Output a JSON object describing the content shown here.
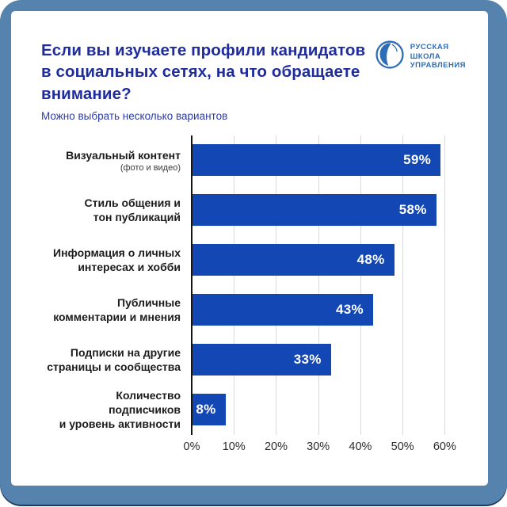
{
  "header": {
    "title": "Если вы изучаете профили кандидатов в социальных сетях, на что обращаете внимание?",
    "subtitle": "Можно выбрать несколько вариантов",
    "logo_lines": [
      "Русская",
      "школа",
      "управления"
    ]
  },
  "chart_data": {
    "type": "bar",
    "orientation": "horizontal",
    "title": "Если вы изучаете профили кандидатов в социальных сетях, на что обращаете внимание?",
    "subtitle": "Можно выбрать несколько вариантов",
    "bars": [
      {
        "label": "Визуальный контент",
        "sublabel": "(фото и видео)",
        "value": 59,
        "display": "59%"
      },
      {
        "label": "Стиль общения и\nтон публикаций",
        "value": 58,
        "display": "58%"
      },
      {
        "label": "Информация о личных\nинтересах и хобби",
        "value": 48,
        "display": "48%"
      },
      {
        "label": "Публичные\nкомментарии и мнения",
        "value": 43,
        "display": "43%"
      },
      {
        "label": "Подписки на другие\nстраницы и сообщества",
        "value": 33,
        "display": "33%"
      },
      {
        "label": "Количество подписчиков\nи уровень активности",
        "value": 8,
        "display": "8%"
      }
    ],
    "x_ticks": [
      "0%",
      "10%",
      "20%",
      "30%",
      "40%",
      "50%",
      "60%"
    ],
    "xlim": [
      0,
      65
    ],
    "grid": "vertical",
    "legend": "none",
    "bar_color": "#1347b4",
    "value_label_color": "#ffffff"
  },
  "colors": {
    "frame": "#5583ad",
    "frame_edge": "#1d3b60",
    "card": "#ffffff",
    "title": "#1e2c9c",
    "subtitle": "#2c3aa6",
    "bar": "#1347b4",
    "axis_line": "#141414",
    "gridline": "#d9d9d9",
    "logo": "#2e6cb5"
  }
}
